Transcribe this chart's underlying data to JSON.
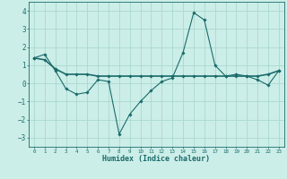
{
  "xlabel": "Humidex (Indice chaleur)",
  "background_color": "#cceee8",
  "line_color": "#1a6b6b",
  "grid_color": "#aad8d0",
  "xlim": [
    -0.5,
    23.5
  ],
  "ylim": [
    -3.5,
    4.5
  ],
  "xticks": [
    0,
    1,
    2,
    3,
    4,
    5,
    6,
    7,
    8,
    9,
    10,
    11,
    12,
    13,
    14,
    15,
    16,
    17,
    18,
    19,
    20,
    21,
    22,
    23
  ],
  "yticks": [
    -3,
    -2,
    -1,
    0,
    1,
    2,
    3,
    4
  ],
  "series1_x": [
    0,
    1,
    2,
    3,
    4,
    5,
    6,
    7,
    8,
    9,
    10,
    11,
    12,
    13,
    14,
    15,
    16,
    17,
    18,
    19,
    20,
    21,
    22,
    23
  ],
  "series1_y": [
    1.4,
    1.6,
    0.7,
    -0.3,
    -0.6,
    -0.5,
    0.2,
    0.1,
    -2.8,
    -1.7,
    -1.0,
    -0.4,
    0.1,
    0.3,
    1.7,
    3.9,
    3.5,
    1.0,
    0.4,
    0.5,
    0.4,
    0.2,
    -0.1,
    0.7
  ],
  "series2_x": [
    0,
    1,
    2,
    3,
    4,
    5,
    6,
    7,
    8,
    9,
    10,
    11,
    12,
    13,
    14,
    15,
    16,
    17,
    18,
    19,
    20,
    21,
    22,
    23
  ],
  "series2_y": [
    1.4,
    1.3,
    0.8,
    0.5,
    0.5,
    0.5,
    0.4,
    0.4,
    0.4,
    0.4,
    0.4,
    0.4,
    0.4,
    0.4,
    0.4,
    0.4,
    0.4,
    0.4,
    0.4,
    0.4,
    0.4,
    0.4,
    0.5,
    0.7
  ]
}
